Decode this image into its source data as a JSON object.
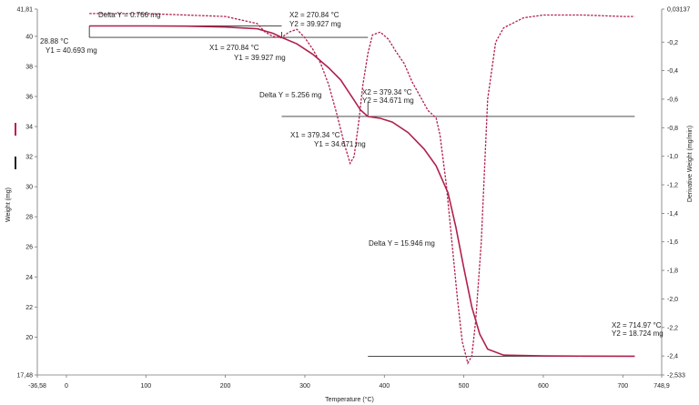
{
  "chart_data": {
    "type": "line",
    "xlabel": "Temperature (°C)",
    "ylabel_left": "Weight (mg)",
    "ylabel_right": "Derivative Weight (mg/min)",
    "xlim": [
      -36.58,
      748.9
    ],
    "ylim_left": [
      17.48,
      41.81
    ],
    "ylim_right": [
      -2.533,
      0.03137
    ],
    "x_ticks": [
      "-36,58",
      "0",
      "100",
      "200",
      "300",
      "400",
      "500",
      "600",
      "700",
      "748,9"
    ],
    "y_left_ticks": [
      "17,48",
      "20",
      "22",
      "24",
      "26",
      "28",
      "30",
      "32",
      "34",
      "36",
      "38",
      "40",
      "41,81"
    ],
    "y_right_ticks": [
      "0,03137",
      "-0,2",
      "-0,4",
      "-0,6",
      "-0,8",
      "-1,0",
      "-1,2",
      "-1,4",
      "-1,6",
      "-1,8",
      "-2,0",
      "-2,2",
      "-2,4",
      "-2,533"
    ],
    "series": [
      {
        "axis": "left",
        "color": "#b0204a",
        "style": "solid",
        "points": [
          [
            28.88,
            40.693
          ],
          [
            100,
            40.69
          ],
          [
            150,
            40.68
          ],
          [
            200,
            40.62
          ],
          [
            240,
            40.5
          ],
          [
            260,
            40.2
          ],
          [
            270.84,
            39.927
          ],
          [
            290,
            39.5
          ],
          [
            310,
            38.8
          ],
          [
            330,
            37.9
          ],
          [
            345,
            37.1
          ],
          [
            360,
            35.9
          ],
          [
            370,
            35.1
          ],
          [
            379.34,
            34.671
          ],
          [
            395,
            34.55
          ],
          [
            410,
            34.3
          ],
          [
            430,
            33.6
          ],
          [
            450,
            32.5
          ],
          [
            465,
            31.4
          ],
          [
            480,
            29.6
          ],
          [
            490,
            27.3
          ],
          [
            500,
            24.6
          ],
          [
            510,
            22.0
          ],
          [
            520,
            20.2
          ],
          [
            530,
            19.2
          ],
          [
            550,
            18.8
          ],
          [
            600,
            18.75
          ],
          [
            650,
            18.73
          ],
          [
            714.97,
            18.724
          ]
        ]
      },
      {
        "axis": "right",
        "color": "#b0204a",
        "style": "dashed",
        "points": [
          [
            28.88,
            0.0
          ],
          [
            100,
            0.0
          ],
          [
            200,
            -0.02
          ],
          [
            240,
            -0.07
          ],
          [
            250,
            -0.13
          ],
          [
            260,
            -0.16
          ],
          [
            270,
            -0.17
          ],
          [
            280,
            -0.13
          ],
          [
            290,
            -0.11
          ],
          [
            300,
            -0.17
          ],
          [
            310,
            -0.25
          ],
          [
            320,
            -0.35
          ],
          [
            330,
            -0.5
          ],
          [
            340,
            -0.7
          ],
          [
            350,
            -0.92
          ],
          [
            357,
            -1.05
          ],
          [
            362,
            -1.0
          ],
          [
            368,
            -0.75
          ],
          [
            373,
            -0.5
          ],
          [
            379.34,
            -0.28
          ],
          [
            385,
            -0.15
          ],
          [
            395,
            -0.13
          ],
          [
            405,
            -0.18
          ],
          [
            415,
            -0.27
          ],
          [
            425,
            -0.35
          ],
          [
            435,
            -0.48
          ],
          [
            445,
            -0.58
          ],
          [
            455,
            -0.68
          ],
          [
            465,
            -0.73
          ],
          [
            470,
            -0.85
          ],
          [
            478,
            -1.2
          ],
          [
            485,
            -1.6
          ],
          [
            492,
            -2.0
          ],
          [
            498,
            -2.3
          ],
          [
            505,
            -2.45
          ],
          [
            510,
            -2.4
          ],
          [
            515,
            -2.15
          ],
          [
            522,
            -1.6
          ],
          [
            530,
            -0.6
          ],
          [
            540,
            -0.2
          ],
          [
            550,
            -0.1
          ],
          [
            575,
            -0.03
          ],
          [
            600,
            -0.01
          ],
          [
            650,
            -0.01
          ],
          [
            700,
            -0.02
          ],
          [
            714.97,
            -0.02
          ]
        ]
      }
    ],
    "annotations": [
      {
        "text": "Delta Y = 0.766 mg"
      },
      {
        "text": "28.88 °C"
      },
      {
        "text": "Y1 = 40.693 mg"
      },
      {
        "text": "X2 = 270.84 °C"
      },
      {
        "text": "Y2 = 39.927 mg"
      },
      {
        "text": "X1 = 270.84 °C"
      },
      {
        "text": "Y1 = 39.927 mg"
      },
      {
        "text": "Delta Y = 5.256 mg"
      },
      {
        "text": "X2 = 379.34 °C"
      },
      {
        "text": "Y2 = 34.671 mg"
      },
      {
        "text": "X1 = 379.34 °C"
      },
      {
        "text": "Y1 = 34.671 mg"
      },
      {
        "text": "Delta Y = 15.946 mg"
      },
      {
        "text": "X2 = 714.97 °C"
      },
      {
        "text": "Y2 = 18.724 mg"
      }
    ],
    "reference_lines": [
      {
        "level_mg": 40.693,
        "x_from": 28.88,
        "x_to": 270.84
      },
      {
        "level_mg": 39.927,
        "x_from": 28.88,
        "x_to": 379.34
      },
      {
        "level_mg": 34.671,
        "x_from": 270.84,
        "x_to": 714.97
      },
      {
        "level_mg": 18.724,
        "x_from": 379.34,
        "x_to": 714.97
      }
    ],
    "grid": false,
    "legend": "left"
  },
  "colors": {
    "weight_curve": "#b0204a",
    "derivative_curve": "#b0204a",
    "reference_line": "#333333",
    "legend_weight": "#c0184a",
    "legend_derivative": "#222222"
  }
}
